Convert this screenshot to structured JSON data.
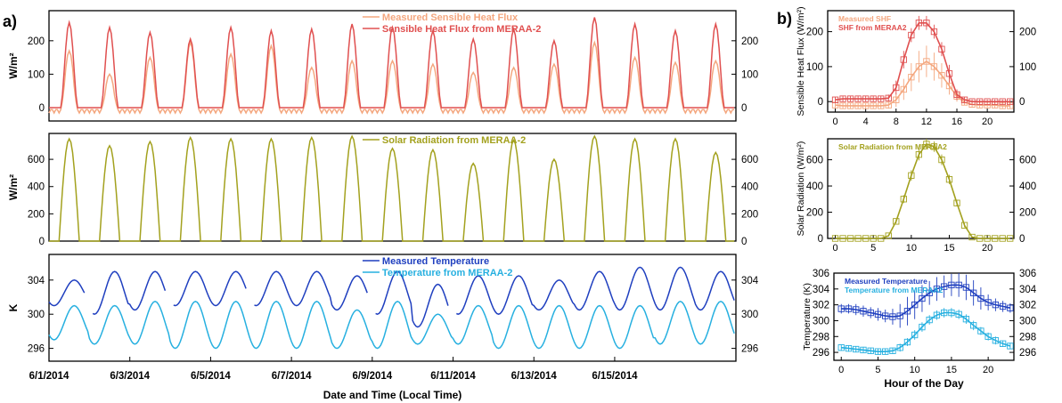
{
  "panel_labels": {
    "a": "a)",
    "b": "b)"
  },
  "colors": {
    "measured_shf": "#f4a77f",
    "merra_shf": "#e05050",
    "solar": "#a3a11e",
    "measured_temp": "#1f3fbf",
    "merra_temp": "#27b0e0"
  },
  "chart_data": [
    {
      "type": "line",
      "panel": "a-top",
      "ylabel": "W/m²",
      "xlim": [
        0,
        17
      ],
      "ylim": [
        -40,
        290
      ],
      "yticks": [
        0,
        100,
        200
      ],
      "ytick_labels": [
        "0",
        "100",
        "200"
      ],
      "series": [
        {
          "name": "Measured Sensible Heat Flux",
          "kind": "shf_meas",
          "daily_peak": [
            170,
            100,
            150,
            195,
            160,
            185,
            120,
            140,
            140,
            130,
            105,
            120,
            130,
            195,
            150,
            135,
            140
          ]
        },
        {
          "name": "Sensible Heat Flux from MERAA-2",
          "kind": "shf_merra",
          "daily_peak": [
            255,
            240,
            225,
            205,
            240,
            230,
            235,
            250,
            240,
            230,
            205,
            235,
            200,
            270,
            250,
            230,
            250
          ]
        }
      ]
    },
    {
      "type": "line",
      "panel": "a-middle",
      "ylabel": "W/m²",
      "xlim": [
        0,
        17
      ],
      "ylim": [
        0,
        790
      ],
      "yticks": [
        0,
        200,
        400,
        600
      ],
      "ytick_labels": [
        "0",
        "200",
        "400",
        "600"
      ],
      "series": [
        {
          "name": "Solar Radiation from MERAA-2",
          "kind": "solar",
          "daily_peak": [
            750,
            700,
            730,
            760,
            750,
            750,
            760,
            770,
            680,
            670,
            570,
            740,
            600,
            770,
            750,
            750,
            650
          ]
        }
      ]
    },
    {
      "type": "line",
      "panel": "a-bottom",
      "ylabel": "K",
      "xlabel": "Date and Time (Local Time)",
      "xlim": [
        0,
        17
      ],
      "ylim": [
        294.5,
        307
      ],
      "yticks": [
        296,
        300,
        304
      ],
      "ytick_labels": [
        "296",
        "300",
        "304"
      ],
      "xticks": [
        0,
        2,
        4,
        6,
        8,
        10,
        12,
        14
      ],
      "xtick_labels": [
        "6/1/2014",
        "6/3/2014",
        "6/5/2014",
        "6/7/2014",
        "6/9/2014",
        "6/11/2014",
        "6/13/2014",
        "6/15/2014"
      ],
      "series": [
        {
          "name": "Measured Temperature",
          "kind": "temp_meas",
          "daily_min": [
            301,
            300,
            300.5,
            301,
            301,
            301,
            301,
            300.5,
            300,
            298.5,
            300,
            300,
            300.5,
            300.5,
            300.5,
            300.5,
            300.5
          ],
          "daily_max": [
            304,
            305,
            305,
            305,
            305,
            305,
            305,
            304.5,
            305,
            303.5,
            304.5,
            304.5,
            304,
            305,
            305.5,
            305.5,
            305
          ]
        },
        {
          "name": "Temperature from MERAA-2",
          "kind": "temp_merra",
          "daily_min": [
            297,
            296.5,
            296.5,
            296,
            296,
            296,
            296,
            296,
            296,
            296.5,
            296.5,
            296,
            296,
            296,
            296,
            296.5,
            296.5
          ],
          "daily_max": [
            301,
            301,
            301.5,
            301.5,
            301.5,
            301.5,
            301.5,
            300.5,
            301.5,
            300,
            301,
            301,
            301,
            301,
            301,
            301.5,
            301.5
          ]
        }
      ]
    },
    {
      "type": "line",
      "panel": "b-top",
      "ylabel": "Sensible Heat Flux (W/m²)",
      "xlim": [
        -1,
        23.5
      ],
      "ylim": [
        -30,
        260
      ],
      "yticks": [
        0,
        100,
        200
      ],
      "ytick_labels": [
        "0",
        "100",
        "200"
      ],
      "xticks": [
        0,
        4,
        8,
        12,
        16,
        20
      ],
      "xtick_labels": [
        "0",
        "4",
        "8",
        "12",
        "16",
        "20"
      ],
      "series": [
        {
          "name": "Measured SHF",
          "kind": "shf_meas",
          "x": [
            0,
            1,
            2,
            3,
            4,
            5,
            6,
            7,
            8,
            9,
            10,
            11,
            12,
            13,
            14,
            15,
            16,
            17,
            18,
            19,
            20,
            21,
            22,
            23
          ],
          "y": [
            -10,
            -12,
            -12,
            -12,
            -12,
            -12,
            -12,
            -10,
            5,
            35,
            70,
            100,
            115,
            100,
            75,
            45,
            15,
            -2,
            -8,
            -10,
            -10,
            -10,
            -12,
            -12
          ],
          "err": [
            8,
            8,
            8,
            8,
            8,
            8,
            8,
            10,
            20,
            30,
            40,
            45,
            45,
            40,
            35,
            25,
            15,
            8,
            8,
            8,
            8,
            8,
            8,
            8
          ]
        },
        {
          "name": "SHF from MERAA2",
          "kind": "shf_merra",
          "x": [
            0,
            1,
            2,
            3,
            4,
            5,
            6,
            7,
            8,
            9,
            10,
            11,
            12,
            13,
            14,
            15,
            16,
            17,
            18,
            19,
            20,
            21,
            22,
            23
          ],
          "y": [
            5,
            8,
            8,
            8,
            8,
            8,
            8,
            10,
            40,
            120,
            190,
            225,
            225,
            200,
            150,
            80,
            20,
            5,
            0,
            0,
            0,
            0,
            0,
            0
          ],
          "err": [
            8,
            8,
            8,
            8,
            8,
            8,
            8,
            10,
            20,
            25,
            20,
            20,
            20,
            20,
            20,
            25,
            15,
            8,
            6,
            6,
            6,
            6,
            6,
            6
          ]
        }
      ]
    },
    {
      "type": "line",
      "panel": "b-middle",
      "ylabel": "Solar Radiation (W/m²)",
      "xlim": [
        -1,
        23.5
      ],
      "ylim": [
        0,
        760
      ],
      "yticks": [
        0,
        200,
        400,
        600
      ],
      "ytick_labels": [
        "0",
        "200",
        "400",
        "600"
      ],
      "xticks": [
        0,
        5,
        10,
        15,
        20
      ],
      "xtick_labels": [
        "0",
        "5",
        "10",
        "15",
        "20"
      ],
      "series": [
        {
          "name": "Solar Radiation from MERAA2",
          "kind": "solar",
          "x": [
            0,
            1,
            2,
            3,
            4,
            5,
            6,
            7,
            8,
            9,
            10,
            11,
            12,
            13,
            14,
            15,
            16,
            17,
            18,
            19,
            20,
            21,
            22,
            23
          ],
          "y": [
            0,
            0,
            0,
            0,
            0,
            0,
            0,
            20,
            130,
            300,
            480,
            640,
            720,
            700,
            600,
            450,
            270,
            100,
            10,
            0,
            0,
            0,
            0,
            0
          ],
          "err": [
            0,
            0,
            0,
            0,
            0,
            0,
            0,
            5,
            15,
            30,
            40,
            45,
            40,
            40,
            40,
            35,
            25,
            15,
            5,
            0,
            0,
            0,
            0,
            0
          ]
        }
      ]
    },
    {
      "type": "line",
      "panel": "b-bottom",
      "ylabel": "Temperature (K)",
      "xlabel": "Hour of the Day",
      "xlim": [
        -1,
        23.5
      ],
      "ylim": [
        295,
        306
      ],
      "yticks": [
        296,
        298,
        300,
        302,
        304,
        306
      ],
      "ytick_labels": [
        "296",
        "298",
        "300",
        "302",
        "304",
        "306"
      ],
      "xticks": [
        0,
        5,
        10,
        15,
        20
      ],
      "xtick_labels": [
        "0",
        "5",
        "10",
        "15",
        "20"
      ],
      "series": [
        {
          "name": "Measured Temperature",
          "kind": "temp_meas",
          "x": [
            0,
            1,
            2,
            3,
            4,
            5,
            6,
            7,
            8,
            9,
            10,
            11,
            12,
            13,
            14,
            15,
            16,
            17,
            18,
            19,
            20,
            21,
            22,
            23
          ],
          "y": [
            301.5,
            301.5,
            301.4,
            301.2,
            301,
            300.8,
            300.6,
            300.5,
            300.6,
            301.2,
            302,
            302.8,
            303.5,
            304,
            304.3,
            304.5,
            304.5,
            304.2,
            303.5,
            302.8,
            302.3,
            302,
            301.8,
            301.6
          ],
          "err": [
            0.6,
            0.6,
            0.7,
            0.7,
            0.7,
            0.8,
            0.8,
            1.0,
            1.5,
            1.8,
            1.8,
            1.7,
            1.5,
            1.5,
            1.4,
            1.4,
            1.5,
            1.6,
            1.6,
            1.4,
            1.0,
            0.8,
            0.7,
            0.6
          ]
        },
        {
          "name": "Temperature from MERAA2",
          "kind": "temp_merra",
          "x": [
            0,
            1,
            2,
            3,
            4,
            5,
            6,
            7,
            8,
            9,
            10,
            11,
            12,
            13,
            14,
            15,
            16,
            17,
            18,
            19,
            20,
            21,
            22,
            23
          ],
          "y": [
            296.6,
            296.5,
            296.4,
            296.3,
            296.2,
            296.1,
            296.1,
            296.2,
            296.6,
            297.3,
            298.2,
            299.2,
            300.1,
            300.7,
            301,
            301,
            300.8,
            300.2,
            299.4,
            298.7,
            298,
            297.5,
            297.1,
            296.8
          ],
          "err": [
            0.4,
            0.4,
            0.4,
            0.4,
            0.4,
            0.4,
            0.4,
            0.4,
            0.5,
            0.5,
            0.6,
            0.6,
            0.6,
            0.6,
            0.6,
            0.6,
            0.6,
            0.6,
            0.6,
            0.5,
            0.5,
            0.5,
            0.4,
            0.4
          ]
        }
      ]
    }
  ]
}
